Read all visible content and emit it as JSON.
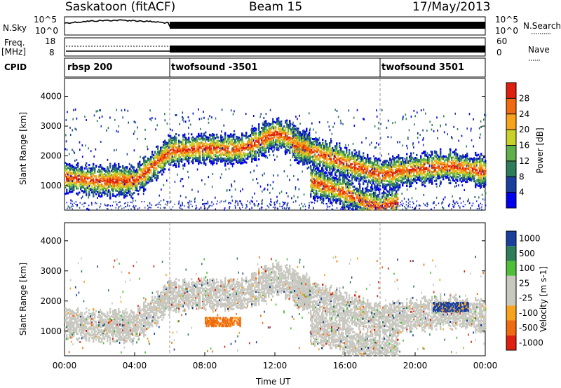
{
  "header": {
    "station": "Saskatoon (fitACF)",
    "beam": "Beam 15",
    "date": "17/May/2013"
  },
  "labels": {
    "nsky": "N.Sky",
    "freq_top": "Freq.",
    "freq_unit": "[MHz]",
    "cpid": "CPID",
    "nsearch": "N.Search",
    "nave": "Nave"
  },
  "axes_small": {
    "noise_left": [
      "10^5",
      "10^0"
    ],
    "noise_right": [
      "10^5",
      "10^0"
    ],
    "freq_left": [
      "18",
      "8"
    ],
    "nave_right": [
      "60",
      "0"
    ]
  },
  "modes": [
    {
      "name": "rbsp 200",
      "start": 0
    },
    {
      "name": "twofsound -3501",
      "start": 6
    },
    {
      "name": "twofsound 3501",
      "start": 18
    }
  ],
  "colors": {
    "power": [
      "#0000ee",
      "#1a3f9c",
      "#2e7d5a",
      "#5fb04a",
      "#c8d12a",
      "#f7a31c",
      "#f06a10",
      "#e0200e"
    ],
    "velocity": [
      "#e0200e",
      "#f06a10",
      "#f7a31c",
      "#c8c8c0",
      "#c8c8c0",
      "#4fbf3a",
      "#2e7d5a",
      "#1a3f9c"
    ]
  },
  "chart_data": [
    {
      "type": "heatmap",
      "quantity": "Power",
      "ylabel": "Slant Range [km]",
      "ylim": [
        180,
        4600
      ],
      "y_ticks": [
        1000,
        2000,
        3000,
        4000
      ],
      "colorbar_label": "Power [dB]",
      "colorbar_ticks": [
        "4",
        "8",
        "12",
        "16",
        "20",
        "24",
        "28"
      ],
      "colorbar_range": [
        0,
        32
      ],
      "echo_bands": [
        {
          "t": [
            0,
            2,
            4,
            5,
            6,
            8,
            10,
            11,
            12,
            13,
            14
          ],
          "range_km": [
            1300,
            1200,
            1200,
            1700,
            2200,
            2300,
            2250,
            2500,
            2800,
            2600,
            2300
          ]
        },
        {
          "t": [
            13,
            14,
            16,
            18,
            20,
            22,
            24
          ],
          "range_km": [
            2400,
            2200,
            1800,
            1400,
            1600,
            1700,
            1500
          ]
        },
        {
          "t": [
            14,
            16,
            17,
            18,
            19
          ],
          "range_km": [
            1200,
            800,
            500,
            300,
            500
          ]
        }
      ]
    },
    {
      "type": "heatmap",
      "quantity": "Velocity",
      "xlabel": "Time UT",
      "ylabel": "Slant Range [km]",
      "ylim": [
        180,
        4600
      ],
      "x_ticks": [
        "00:00",
        "04:00",
        "08:00",
        "12:00",
        "16:00",
        "20:00",
        "00:00"
      ],
      "y_ticks": [
        1000,
        2000,
        3000,
        4000
      ],
      "colorbar_label": "Velocity [m s-1]",
      "colorbar_ticks": [
        "1000",
        "500",
        "100",
        "25",
        "-25",
        "-100",
        "-500",
        "-1000"
      ],
      "regions": [
        {
          "t": [
            8,
            10
          ],
          "range_km": [
            1200,
            1500
          ],
          "velocity_ms": -300
        },
        {
          "t": [
            21,
            23
          ],
          "range_km": [
            1700,
            2000
          ],
          "velocity_ms": 500
        }
      ]
    }
  ]
}
